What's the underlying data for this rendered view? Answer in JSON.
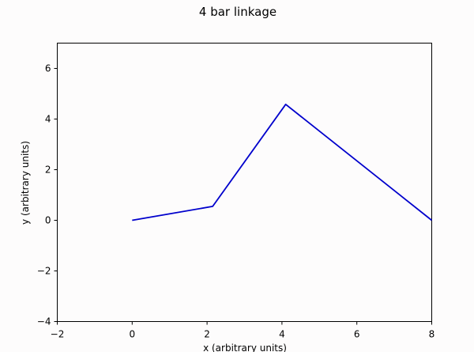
{
  "chart_data": {
    "type": "line",
    "title": "4 bar linkage",
    "xlabel": "x (arbitrary units)",
    "ylabel": "y (arbitrary units)",
    "xlim": [
      -2,
      8
    ],
    "ylim": [
      -4,
      7
    ],
    "x_ticks": [
      -2,
      0,
      2,
      4,
      6,
      8
    ],
    "y_ticks": [
      -4,
      -2,
      0,
      2,
      4,
      6
    ],
    "x_tick_labels": [
      "−2",
      "0",
      "2",
      "4",
      "6",
      "8"
    ],
    "y_tick_labels": [
      "−4",
      "−2",
      "0",
      "2",
      "4",
      "6"
    ],
    "grid": false,
    "series": [
      {
        "x": [
          0,
          2.15,
          4.1,
          8
        ],
        "y": [
          0,
          0.55,
          4.58,
          0
        ],
        "color": "#0000cc"
      }
    ]
  },
  "colors": {
    "background": "#fdfcfc",
    "axes": "#000000"
  }
}
